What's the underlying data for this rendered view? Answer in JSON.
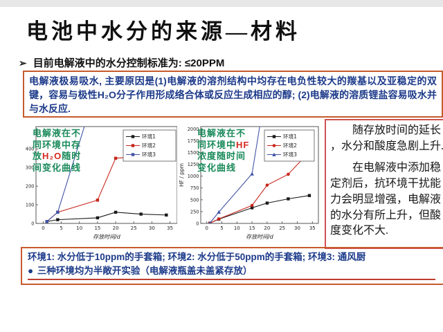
{
  "slide": {
    "title": "电池中水分的来源—材料",
    "bullet_marker": "➢",
    "bullet_text": "目前电解液中的水分控制标准为: ≤20PPM",
    "info_box": "电解液极易吸水, 主要原因是(1)电解液的溶剂结构中均存在电负性较大的羰基以及亚稳定的双键，容易与极性H₂O分子作用形成络合体或反应生成相应的醇; (2)电解液的溶质锂盐容易吸水并与水反应.",
    "right_note": {
      "p1": "随存放时间的延长 ，水分和酸度急剧上升.",
      "p2": "在电解液中添加稳定剂后，抗环境干扰能力会明显增强，电解液的水分有所上升，但酸度变化不大."
    },
    "bottom_box": {
      "line1": "环境1: 水分低于10ppm的手套箱; 环境2: 水分低于50ppm的手套箱; 环境3: 通风厨",
      "line2_bullet": "●",
      "line2": "三种环境均为半敞开实验（电解液瓶盖未盖紧存放）"
    },
    "colors": {
      "info_border": "#c65a2e",
      "note_border": "#d05050",
      "strong_blue": "#1c3a8a",
      "anno_green": "#1a8a5a",
      "anno_red": "#d42a20",
      "rule_red": "#bf3b30"
    }
  },
  "chart_data": [
    {
      "type": "line",
      "title": "电解液在不同环境中存放H₂O随时间变化曲线",
      "xlabel": "存放时间/d",
      "ylabel": "",
      "xlim": [
        -2,
        37
      ],
      "ylim": [
        0,
        520
      ],
      "x_ticks": [
        0,
        5,
        10,
        15,
        20,
        25,
        30,
        35
      ],
      "y_ticks": [
        0,
        100,
        200,
        300,
        400
      ],
      "grid": false,
      "legend_position": "top-right",
      "legend": [
        {
          "label": "环境1",
          "color": "#1a1a1a",
          "marker": "square"
        },
        {
          "label": "环境2",
          "color": "#c7281e",
          "marker": "square"
        },
        {
          "label": "环境3",
          "color": "#4154a6",
          "marker": "square"
        }
      ],
      "series": [
        {
          "name": "环境1",
          "color": "#1a1a1a",
          "marker": "square",
          "points": [
            [
              1,
              10
            ],
            [
              4,
              20
            ],
            [
              15,
              30
            ],
            [
              20,
              60
            ],
            [
              27,
              50
            ],
            [
              34,
              45
            ]
          ]
        },
        {
          "name": "环境2",
          "color": "#c7281e",
          "marker": "square",
          "points": [
            [
              1,
              10
            ],
            [
              4,
              60
            ],
            [
              15,
              125
            ],
            [
              20,
              350
            ],
            [
              27,
              360
            ],
            [
              34,
              358
            ]
          ]
        },
        {
          "name": "环境3",
          "color": "#4154a6",
          "marker": "square",
          "points": [
            [
              1,
              10
            ],
            [
              4,
              60
            ],
            [
              12,
              560
            ]
          ],
          "exceeds_axis": true
        }
      ],
      "annotation": [
        [
          {
            "t": "电解液在不",
            "c": "#1a8a5a"
          }
        ],
        [
          {
            "t": "同环境中存",
            "c": "#1a8a5a"
          }
        ],
        [
          {
            "t": "放",
            "c": "#1a8a5a"
          },
          {
            "t": "H₂O",
            "c": "#d42a20"
          },
          {
            "t": "随时",
            "c": "#1a8a5a"
          }
        ],
        [
          {
            "t": "间变化曲线",
            "c": "#1a8a5a"
          }
        ]
      ]
    },
    {
      "type": "line",
      "title": "电解液在不同环境中HF浓度随时间变化曲线",
      "xlabel": "存放时间/d",
      "ylabel": "HF / ppm",
      "xlim": [
        -2,
        37
      ],
      "ylim": [
        0,
        2050
      ],
      "x_ticks": [
        0,
        5,
        10,
        15,
        20,
        25,
        30,
        35
      ],
      "y_ticks": [
        0,
        250,
        500,
        750,
        1000,
        1250,
        1500,
        1750,
        2000
      ],
      "grid": false,
      "legend_position": "top-right",
      "legend": [
        {
          "label": "环境1",
          "color": "#1a1a1a",
          "marker": "square"
        },
        {
          "label": "环境2",
          "color": "#c7281e",
          "marker": "circle"
        },
        {
          "label": "环境3",
          "color": "#4154a6",
          "marker": "triangle"
        }
      ],
      "series": [
        {
          "name": "环境1",
          "color": "#1a1a1a",
          "marker": "square",
          "points": [
            [
              1,
              5
            ],
            [
              4,
              90
            ],
            [
              15,
              330
            ],
            [
              20,
              430
            ],
            [
              27,
              520
            ],
            [
              34,
              590
            ]
          ]
        },
        {
          "name": "环境2",
          "color": "#c7281e",
          "marker": "circle",
          "points": [
            [
              1,
              5
            ],
            [
              4,
              95
            ],
            [
              15,
              380
            ],
            [
              20,
              810
            ],
            [
              27,
              1040
            ],
            [
              34,
              1515
            ]
          ]
        },
        {
          "name": "环境3",
          "color": "#4154a6",
          "marker": "triangle",
          "points": [
            [
              1,
              5
            ],
            [
              4,
              240
            ],
            [
              15,
              1050
            ],
            [
              17.8,
              2150
            ]
          ],
          "exceeds_axis": true
        }
      ],
      "annotation": [
        [
          {
            "t": "电解液在不",
            "c": "#1a8a5a"
          }
        ],
        [
          {
            "t": "同环境中",
            "c": "#1a8a5a"
          },
          {
            "t": "HF",
            "c": "#d42a20"
          }
        ],
        [
          {
            "t": "浓度随时间",
            "c": "#1a8a5a"
          }
        ],
        [
          {
            "t": "变化曲线",
            "c": "#1a8a5a"
          }
        ]
      ]
    }
  ]
}
